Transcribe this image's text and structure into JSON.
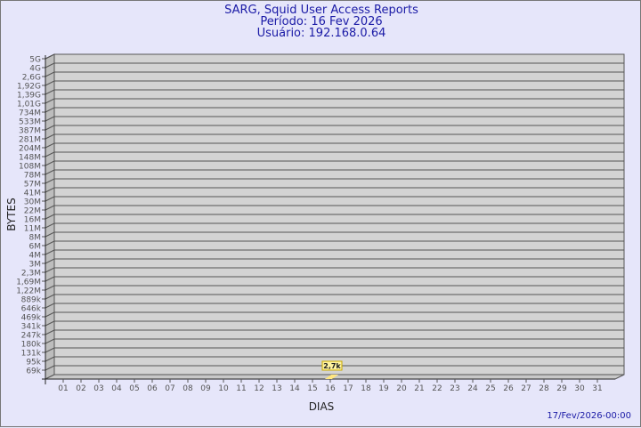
{
  "chart_data": {
    "type": "bar",
    "title": "SARG, Squid User Access Reports",
    "subtitle_period": "Período: 16 Fev 2026",
    "subtitle_user": "Usuário: 192.168.0.64",
    "xlabel": "DIAS",
    "ylabel": "BYTES",
    "y_scale": "log",
    "y_tick_labels": [
      "5G",
      "4G",
      "2,6G",
      "1,92G",
      "1,39G",
      "1,01G",
      "734M",
      "533M",
      "387M",
      "281M",
      "204M",
      "148M",
      "108M",
      "78M",
      "57M",
      "41M",
      "30M",
      "22M",
      "16M",
      "11M",
      "8M",
      "6M",
      "4M",
      "3M",
      "2,3M",
      "1,69M",
      "1,22M",
      "889k",
      "646k",
      "469k",
      "341k",
      "247k",
      "180k",
      "131k",
      "95k",
      "69k"
    ],
    "categories": [
      "01",
      "02",
      "03",
      "04",
      "05",
      "06",
      "07",
      "08",
      "09",
      "10",
      "11",
      "12",
      "13",
      "14",
      "15",
      "16",
      "17",
      "18",
      "19",
      "20",
      "21",
      "22",
      "23",
      "24",
      "25",
      "26",
      "27",
      "28",
      "29",
      "30",
      "31"
    ],
    "bars": [
      {
        "day": "16",
        "value": 2700,
        "label": "2,7k"
      }
    ],
    "grid": true,
    "bar_color": "#ffe680",
    "plot_color": "#d3d3d3"
  },
  "footer_date": "17/Fev/2026-00:00"
}
